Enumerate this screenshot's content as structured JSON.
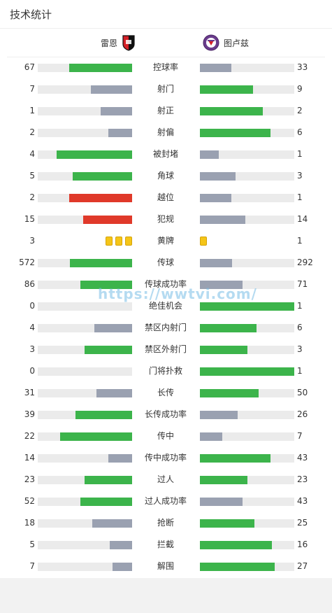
{
  "title": "技术统计",
  "teams": {
    "home": "雷恩",
    "away": "图卢兹"
  },
  "colors": {
    "green": "#3cb44b",
    "gray": "#9aa1b1",
    "red": "#e0392a",
    "yellow": "#f5c518"
  },
  "watermark": "https://wwtvi.com/",
  "stats": [
    {
      "label": "控球率",
      "home": "67",
      "away": "33",
      "hf": 0.67,
      "af": 0.33,
      "hc": "green",
      "ac": "gray"
    },
    {
      "label": "射门",
      "home": "7",
      "away": "9",
      "hf": 0.44,
      "af": 0.56,
      "hc": "gray",
      "ac": "green"
    },
    {
      "label": "射正",
      "home": "1",
      "away": "2",
      "hf": 0.33,
      "af": 0.67,
      "hc": "gray",
      "ac": "green"
    },
    {
      "label": "射偏",
      "home": "2",
      "away": "6",
      "hf": 0.25,
      "af": 0.75,
      "hc": "gray",
      "ac": "green"
    },
    {
      "label": "被封堵",
      "home": "4",
      "away": "1",
      "hf": 0.8,
      "af": 0.2,
      "hc": "green",
      "ac": "gray"
    },
    {
      "label": "角球",
      "home": "5",
      "away": "3",
      "hf": 0.63,
      "af": 0.38,
      "hc": "green",
      "ac": "gray"
    },
    {
      "label": "越位",
      "home": "2",
      "away": "1",
      "hf": 0.67,
      "af": 0.33,
      "hc": "red",
      "ac": "gray"
    },
    {
      "label": "犯规",
      "home": "15",
      "away": "14",
      "hf": 0.52,
      "af": 0.48,
      "hc": "red",
      "ac": "gray"
    },
    {
      "label": "黄牌",
      "home": "3",
      "away": "1",
      "cards_home": 3,
      "cards_away": 1
    },
    {
      "label": "传球",
      "home": "572",
      "away": "292",
      "hf": 0.66,
      "af": 0.34,
      "hc": "green",
      "ac": "gray"
    },
    {
      "label": "传球成功率",
      "home": "86",
      "away": "71",
      "hf": 0.55,
      "af": 0.45,
      "hc": "green",
      "ac": "gray"
    },
    {
      "label": "绝佳机会",
      "home": "0",
      "away": "1",
      "hf": 0,
      "af": 1,
      "hc": "gray",
      "ac": "green"
    },
    {
      "label": "禁区内射门",
      "home": "4",
      "away": "6",
      "hf": 0.4,
      "af": 0.6,
      "hc": "gray",
      "ac": "green"
    },
    {
      "label": "禁区外射门",
      "home": "3",
      "away": "3",
      "hf": 0.5,
      "af": 0.5,
      "hc": "green",
      "ac": "green"
    },
    {
      "label": "门将扑救",
      "home": "0",
      "away": "1",
      "hf": 0,
      "af": 1,
      "hc": "gray",
      "ac": "green"
    },
    {
      "label": "长传",
      "home": "31",
      "away": "50",
      "hf": 0.38,
      "af": 0.62,
      "hc": "gray",
      "ac": "green"
    },
    {
      "label": "长传成功率",
      "home": "39",
      "away": "26",
      "hf": 0.6,
      "af": 0.4,
      "hc": "green",
      "ac": "gray"
    },
    {
      "label": "传中",
      "home": "22",
      "away": "7",
      "hf": 0.76,
      "af": 0.24,
      "hc": "green",
      "ac": "gray"
    },
    {
      "label": "传中成功率",
      "home": "14",
      "away": "43",
      "hf": 0.25,
      "af": 0.75,
      "hc": "gray",
      "ac": "green"
    },
    {
      "label": "过人",
      "home": "23",
      "away": "23",
      "hf": 0.5,
      "af": 0.5,
      "hc": "green",
      "ac": "green"
    },
    {
      "label": "过人成功率",
      "home": "52",
      "away": "43",
      "hf": 0.55,
      "af": 0.45,
      "hc": "green",
      "ac": "gray"
    },
    {
      "label": "抢断",
      "home": "18",
      "away": "25",
      "hf": 0.42,
      "af": 0.58,
      "hc": "gray",
      "ac": "green"
    },
    {
      "label": "拦截",
      "home": "5",
      "away": "16",
      "hf": 0.24,
      "af": 0.76,
      "hc": "gray",
      "ac": "green"
    },
    {
      "label": "解围",
      "home": "7",
      "away": "27",
      "hf": 0.21,
      "af": 0.79,
      "hc": "gray",
      "ac": "green"
    }
  ]
}
